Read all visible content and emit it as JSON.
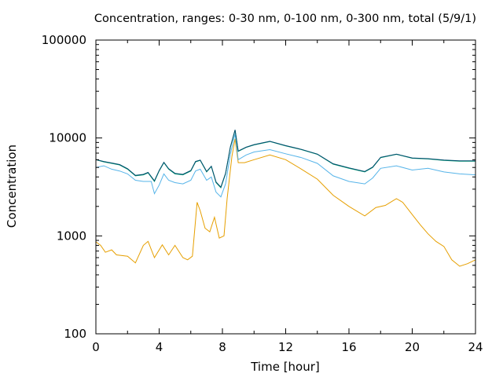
{
  "chart_data": {
    "type": "line",
    "title": "Concentration, ranges: 0-30 nm, 0-100 nm, 0-300 nm, total (5/9/1)",
    "xlabel": "Time [hour]",
    "ylabel": "Concentration",
    "xlim": [
      0,
      24
    ],
    "ylim": [
      100,
      100000
    ],
    "yscale": "log",
    "grid": false,
    "legend": "none",
    "x_ticks": [
      "0",
      "4",
      "8",
      "12",
      "16",
      "20",
      "24"
    ],
    "y_ticks": [
      "100",
      "1000",
      "10000",
      "100000"
    ],
    "series": [
      {
        "color": "#e69f00",
        "points": [
          [
            0,
            870
          ],
          [
            0.3,
            800
          ],
          [
            0.6,
            680
          ],
          [
            1,
            720
          ],
          [
            1.3,
            640
          ],
          [
            2,
            620
          ],
          [
            2.5,
            530
          ],
          [
            3,
            800
          ],
          [
            3.3,
            880
          ],
          [
            3.7,
            600
          ],
          [
            4.2,
            810
          ],
          [
            4.6,
            640
          ],
          [
            5,
            800
          ],
          [
            5.5,
            600
          ],
          [
            5.8,
            570
          ],
          [
            6.1,
            620
          ],
          [
            6.4,
            2200
          ],
          [
            6.6,
            1800
          ],
          [
            6.9,
            1200
          ],
          [
            7.2,
            1100
          ],
          [
            7.5,
            1550
          ],
          [
            7.8,
            950
          ],
          [
            8.1,
            1000
          ],
          [
            8.3,
            2400
          ],
          [
            8.6,
            6500
          ],
          [
            8.8,
            9800
          ],
          [
            9.0,
            5600
          ],
          [
            9.4,
            5600
          ],
          [
            10,
            6000
          ],
          [
            11,
            6700
          ],
          [
            12,
            6000
          ],
          [
            13,
            4800
          ],
          [
            14,
            3800
          ],
          [
            15,
            2600
          ],
          [
            16,
            2000
          ],
          [
            17,
            1600
          ],
          [
            17.7,
            1950
          ],
          [
            18.3,
            2050
          ],
          [
            19,
            2400
          ],
          [
            19.4,
            2200
          ],
          [
            20,
            1650
          ],
          [
            20.5,
            1300
          ],
          [
            21,
            1050
          ],
          [
            21.5,
            880
          ],
          [
            22,
            780
          ],
          [
            22.5,
            570
          ],
          [
            23,
            490
          ],
          [
            23.5,
            520
          ],
          [
            24,
            570
          ]
        ]
      },
      {
        "color": "#56b4e9",
        "points": [
          [
            0,
            5000
          ],
          [
            0.5,
            5200
          ],
          [
            1,
            4800
          ],
          [
            1.5,
            4600
          ],
          [
            2,
            4300
          ],
          [
            2.5,
            3700
          ],
          [
            3,
            3600
          ],
          [
            3.5,
            3600
          ],
          [
            3.7,
            2700
          ],
          [
            4,
            3300
          ],
          [
            4.3,
            4300
          ],
          [
            4.6,
            3700
          ],
          [
            5,
            3500
          ],
          [
            5.5,
            3400
          ],
          [
            6,
            3700
          ],
          [
            6.3,
            4600
          ],
          [
            6.6,
            4800
          ],
          [
            7,
            3700
          ],
          [
            7.3,
            4000
          ],
          [
            7.6,
            2800
          ],
          [
            7.9,
            2500
          ],
          [
            8.2,
            3400
          ],
          [
            8.5,
            6800
          ],
          [
            8.8,
            11000
          ],
          [
            9.0,
            6000
          ],
          [
            9.5,
            6700
          ],
          [
            10,
            7200
          ],
          [
            11,
            7600
          ],
          [
            12,
            6900
          ],
          [
            13,
            6300
          ],
          [
            14,
            5500
          ],
          [
            15,
            4100
          ],
          [
            16,
            3600
          ],
          [
            17,
            3400
          ],
          [
            17.5,
            3900
          ],
          [
            18,
            4900
          ],
          [
            19,
            5200
          ],
          [
            20,
            4700
          ],
          [
            21,
            4900
          ],
          [
            22,
            4500
          ],
          [
            23,
            4300
          ],
          [
            24,
            4200
          ]
        ]
      },
      {
        "color": "#009e73",
        "points": [
          [
            0,
            6000
          ],
          [
            0.5,
            5700
          ],
          [
            1,
            5500
          ],
          [
            1.5,
            5300
          ],
          [
            2,
            4800
          ],
          [
            2.5,
            4100
          ],
          [
            3,
            4200
          ],
          [
            3.3,
            4400
          ],
          [
            3.7,
            3600
          ],
          [
            4,
            4600
          ],
          [
            4.3,
            5600
          ],
          [
            4.6,
            4800
          ],
          [
            5,
            4300
          ],
          [
            5.5,
            4200
          ],
          [
            6,
            4600
          ],
          [
            6.3,
            5700
          ],
          [
            6.6,
            5900
          ],
          [
            7,
            4500
          ],
          [
            7.3,
            5100
          ],
          [
            7.6,
            3500
          ],
          [
            7.9,
            3100
          ],
          [
            8.2,
            4300
          ],
          [
            8.5,
            8000
          ],
          [
            8.8,
            12000
          ],
          [
            9.0,
            7300
          ],
          [
            9.5,
            8000
          ],
          [
            10,
            8500
          ],
          [
            11,
            9200
          ],
          [
            12,
            8300
          ],
          [
            13,
            7600
          ],
          [
            14,
            6800
          ],
          [
            15,
            5400
          ],
          [
            16,
            4900
          ],
          [
            17,
            4500
          ],
          [
            17.5,
            5000
          ],
          [
            18,
            6300
          ],
          [
            19,
            6800
          ],
          [
            20,
            6200
          ],
          [
            21,
            6100
          ],
          [
            22,
            5900
          ],
          [
            23,
            5800
          ],
          [
            24,
            5800
          ]
        ]
      },
      {
        "color": "#004c6d",
        "points": [
          [
            0,
            6000
          ],
          [
            0.5,
            5750
          ],
          [
            1,
            5550
          ],
          [
            1.5,
            5350
          ],
          [
            2,
            4850
          ],
          [
            2.5,
            4150
          ],
          [
            3,
            4250
          ],
          [
            3.3,
            4450
          ],
          [
            3.7,
            3650
          ],
          [
            4,
            4650
          ],
          [
            4.3,
            5650
          ],
          [
            4.6,
            4850
          ],
          [
            5,
            4350
          ],
          [
            5.5,
            4250
          ],
          [
            6,
            4650
          ],
          [
            6.3,
            5750
          ],
          [
            6.6,
            5950
          ],
          [
            7,
            4550
          ],
          [
            7.3,
            5150
          ],
          [
            7.6,
            3550
          ],
          [
            7.9,
            3150
          ],
          [
            8.2,
            4350
          ],
          [
            8.5,
            8100
          ],
          [
            8.8,
            12100
          ],
          [
            9.0,
            7350
          ],
          [
            9.5,
            8050
          ],
          [
            10,
            8550
          ],
          [
            11,
            9250
          ],
          [
            12,
            8350
          ],
          [
            13,
            7650
          ],
          [
            14,
            6850
          ],
          [
            15,
            5450
          ],
          [
            16,
            4950
          ],
          [
            17,
            4550
          ],
          [
            17.5,
            5050
          ],
          [
            18,
            6350
          ],
          [
            19,
            6850
          ],
          [
            20,
            6250
          ],
          [
            21,
            6150
          ],
          [
            22,
            5950
          ],
          [
            23,
            5850
          ],
          [
            24,
            5850
          ]
        ]
      }
    ]
  }
}
